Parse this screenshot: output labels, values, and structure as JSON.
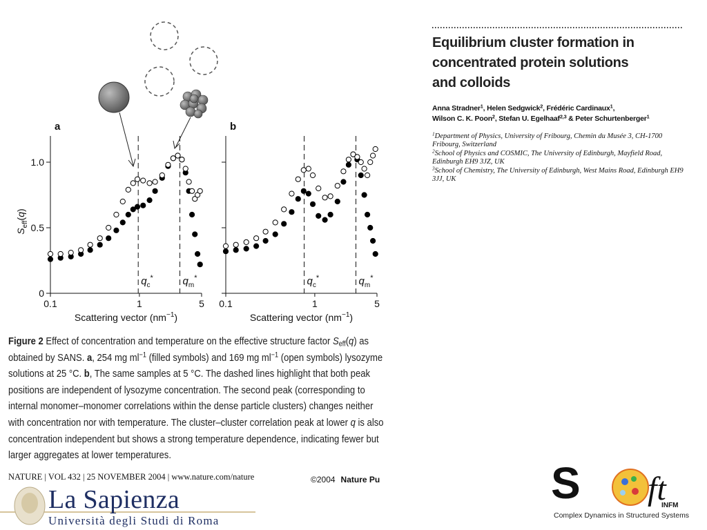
{
  "chart_data": [
    {
      "type": "scatter",
      "panel_label": "a",
      "xlabel": [
        {
          "t": "Scattering vector (nm"
        },
        {
          "t": "−1",
          "sup": true
        },
        {
          "t": ")"
        }
      ],
      "ylabel": [
        {
          "t": "S",
          "i": true
        },
        {
          "t": "eff",
          "sub": true
        },
        {
          "t": "("
        },
        {
          "t": "q",
          "i": true
        },
        {
          "t": ")"
        }
      ],
      "xscale": "log",
      "xlim": [
        0.1,
        5
      ],
      "xticks": [
        0.1,
        1,
        5
      ],
      "ylim": [
        0,
        1.2
      ],
      "yticks": [
        0,
        0.5,
        {
          "value": 1,
          "label": "1.0"
        }
      ],
      "ytick_labels": true,
      "x": [
        0.1,
        0.13,
        0.17,
        0.22,
        0.28,
        0.36,
        0.45,
        0.55,
        0.65,
        0.75,
        0.85,
        0.95,
        1.1,
        1.3,
        1.5,
        1.8,
        2.1,
        2.4,
        2.7,
        3.0,
        3.3,
        3.6,
        3.9,
        4.2,
        4.5,
        4.8
      ],
      "series": [
        {
          "name": "254 mg ml−1",
          "color": "#000000",
          "fill": "#000000",
          "values": [
            0.26,
            0.27,
            0.28,
            0.3,
            0.33,
            0.37,
            0.42,
            0.48,
            0.54,
            0.6,
            0.64,
            0.66,
            0.67,
            0.71,
            0.78,
            0.88,
            0.97,
            1.03,
            1.05,
            1.02,
            0.92,
            0.78,
            0.6,
            0.45,
            0.3,
            0.22
          ]
        },
        {
          "name": "169 mg ml−1",
          "color": "#000000",
          "fill": "#ffffff",
          "values": [
            0.3,
            0.3,
            0.31,
            0.33,
            0.37,
            0.42,
            0.5,
            0.6,
            0.7,
            0.79,
            0.84,
            0.87,
            0.86,
            0.84,
            0.85,
            0.9,
            0.98,
            1.03,
            1.05,
            1.02,
            0.95,
            0.85,
            0.78,
            0.72,
            0.75,
            0.78
          ]
        }
      ],
      "annotations": [
        {
          "x": 0.97,
          "t": "q",
          "sub": "c",
          "sup": "*"
        },
        {
          "x": 2.85,
          "t": "q",
          "sub": "m",
          "sup": "*"
        }
      ]
    },
    {
      "type": "scatter",
      "panel_label": "b",
      "xlabel": [
        {
          "t": "Scattering vector (nm"
        },
        {
          "t": "−1",
          "sup": true
        },
        {
          "t": ")"
        }
      ],
      "xscale": "log",
      "xlim": [
        0.1,
        5
      ],
      "xticks": [
        0.1,
        1,
        5
      ],
      "ylim": [
        0,
        1.2
      ],
      "yticks": [
        0,
        0.5,
        1
      ],
      "ytick_labels": false,
      "x": [
        0.1,
        0.13,
        0.17,
        0.22,
        0.28,
        0.36,
        0.45,
        0.55,
        0.65,
        0.75,
        0.85,
        0.95,
        1.1,
        1.3,
        1.5,
        1.8,
        2.1,
        2.4,
        2.7,
        3.0,
        3.3,
        3.6,
        3.9,
        4.2,
        4.5,
        4.8
      ],
      "series": [
        {
          "name": "254 mg ml−1",
          "color": "#000000",
          "fill": "#000000",
          "values": [
            0.32,
            0.33,
            0.34,
            0.36,
            0.4,
            0.45,
            0.53,
            0.62,
            0.72,
            0.78,
            0.76,
            0.68,
            0.59,
            0.56,
            0.6,
            0.7,
            0.85,
            0.98,
            1.06,
            1.02,
            0.9,
            0.75,
            0.6,
            0.5,
            0.4,
            0.3
          ]
        },
        {
          "name": "169 mg ml−1",
          "color": "#000000",
          "fill": "#ffffff",
          "values": [
            0.36,
            0.37,
            0.39,
            0.42,
            0.47,
            0.54,
            0.64,
            0.76,
            0.87,
            0.94,
            0.95,
            0.9,
            0.8,
            0.73,
            0.74,
            0.82,
            0.93,
            1.02,
            1.06,
            1.04,
            1.0,
            0.95,
            0.9,
            1.0,
            1.05,
            1.1
          ]
        }
      ],
      "annotations": [
        {
          "x": 0.76,
          "t": "q",
          "sub": "c",
          "sup": "*"
        },
        {
          "x": 2.9,
          "t": "q",
          "sub": "m",
          "sup": "*"
        }
      ]
    }
  ],
  "article": {
    "title": [
      "Equilibrium cluster formation in",
      "concentrated protein solutions",
      "and colloids"
    ],
    "authors": [
      [
        {
          "t": "Anna Stradner"
        },
        {
          "t": "1",
          "sup": true
        },
        {
          "t": ", Helen Sedgwick"
        },
        {
          "t": "2",
          "sup": true
        },
        {
          "t": ", Frédéric Cardinaux"
        },
        {
          "t": "1",
          "sup": true
        },
        {
          "t": ","
        }
      ],
      [
        {
          "t": "Wilson C. K. Poon"
        },
        {
          "t": "2",
          "sup": true
        },
        {
          "t": ", Stefan U. Egelhaaf"
        },
        {
          "t": "2,3",
          "sup": true
        },
        {
          "t": " & Peter Schurtenberger"
        },
        {
          "t": "1",
          "sup": true
        }
      ]
    ],
    "affiliations": [
      [
        {
          "t": "1",
          "sup": true
        },
        {
          "t": "Department of Physics, University of Fribourg, Chemin du Musée 3, CH-1700 Fribourg, Switzerland"
        }
      ],
      [
        {
          "t": "2",
          "sup": true
        },
        {
          "t": "School of Physics and COSMIC, The University of Edinburgh, Mayfield Road, Edinburgh EH9 3JZ, UK"
        }
      ],
      [
        {
          "t": "3",
          "sup": true
        },
        {
          "t": "School of Chemistry, The University of Edinburgh, West Mains Road, Edinburgh EH9 3JJ, UK"
        }
      ]
    ],
    "caption": [
      {
        "t": "Figure 2",
        "b": true
      },
      {
        "t": " Effect of concentration and temperature on the effective structure factor "
      },
      {
        "t": "S",
        "i": true
      },
      {
        "t": "eff",
        "sub": true
      },
      {
        "t": "("
      },
      {
        "t": "q",
        "i": true
      },
      {
        "t": ") as obtained by SANS. "
      },
      {
        "t": "a",
        "b": true
      },
      {
        "t": ", 254 mg ml"
      },
      {
        "t": "−1",
        "sup": true
      },
      {
        "t": " (filled symbols) and 169 mg ml"
      },
      {
        "t": "−1",
        "sup": true
      },
      {
        "t": " (open symbols) lysozyme solutions at 25 °C. "
      },
      {
        "t": "b",
        "b": true
      },
      {
        "t": ", The same samples at 5 °C. The dashed lines highlight that both peak positions are independent of lysozyme concentration. The second peak (corresponding to internal monomer–monomer correlations within the dense particle clusters) changes neither with concentration nor with temperature. The cluster–cluster correlation peak at lower "
      },
      {
        "t": "q",
        "i": true
      },
      {
        "t": " is also concentration independent but shows a strong temperature dependence, indicating fewer but larger aggregates at lower temperatures."
      }
    ],
    "journal": "NATURE | VOL 432 | 25 NOVEMBER 2004 | www.nature.com/nature"
  },
  "footer": {
    "copyright": "©2004",
    "publisher": "Nature Pu",
    "university": "La Sapienza",
    "university_sub": "Università degli Studi di Roma",
    "logo_s": "S",
    "logo_ft": "ft",
    "logo_infm": "INFM",
    "logo_caption": "Complex Dynamics in Structured Systems"
  }
}
